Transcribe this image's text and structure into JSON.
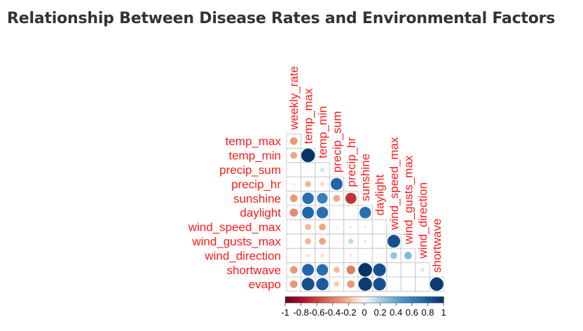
{
  "title": "Relationship Between Disease Rates and Environmental Factors",
  "chart_data": {
    "type": "heatmap",
    "style": "correlation-matrix-circles-lower-triangle",
    "variables": [
      "weekly_rate",
      "temp_max",
      "temp_min",
      "precip_sum",
      "precip_hr",
      "sunshine",
      "daylight",
      "wind_speed_max",
      "wind_gusts_max",
      "wind_direction",
      "shortwave",
      "evapo"
    ],
    "row_labels": [
      "temp_max",
      "temp_min",
      "precip_sum",
      "precip_hr",
      "sunshine",
      "daylight",
      "wind_speed_max",
      "wind_gusts_max",
      "wind_direction",
      "shortwave",
      "evapo"
    ],
    "col_labels": [
      "weekly_rate",
      "temp_max",
      "temp_min",
      "precip_sum",
      "precip_hr",
      "sunshine",
      "daylight",
      "wind_speed_max",
      "wind_gusts_max",
      "wind_direction",
      "shortwave"
    ],
    "matrix": [
      [
        -0.3
      ],
      [
        -0.25,
        0.98
      ],
      [
        -0.02,
        0.02,
        0.1
      ],
      [
        -0.05,
        -0.2,
        -0.1,
        0.75
      ],
      [
        -0.3,
        0.7,
        0.6,
        -0.25,
        -0.65
      ],
      [
        -0.35,
        0.75,
        0.7,
        0.0,
        0.0,
        0.7
      ],
      [
        -0.02,
        -0.2,
        -0.25,
        -0.04,
        0.04,
        0.04,
        0.0
      ],
      [
        -0.02,
        -0.2,
        -0.25,
        0.02,
        0.15,
        0.04,
        0.0,
        0.85
      ],
      [
        -0.02,
        -0.08,
        -0.08,
        0.0,
        -0.06,
        0.0,
        0.0,
        0.25,
        0.3
      ],
      [
        -0.3,
        0.75,
        0.7,
        -0.2,
        -0.4,
        0.98,
        0.85,
        0.02,
        0.0,
        0.08
      ],
      [
        -0.3,
        0.85,
        0.8,
        -0.15,
        -0.3,
        0.95,
        0.85,
        0.0,
        0.0,
        0.0,
        0.95
      ]
    ],
    "colorbar": {
      "range": [
        -1,
        1
      ],
      "ticks": [
        "-1",
        "-0.8",
        "-0.6",
        "-0.4",
        "-0.2",
        "0",
        "0.2",
        "0.4",
        "0.6",
        "0.8",
        "1"
      ]
    },
    "colors": {
      "negative": "#67001f",
      "zero": "#f7f7f7",
      "positive": "#053061",
      "labels": "#ff1a1a",
      "grid": "#cccccc"
    }
  }
}
